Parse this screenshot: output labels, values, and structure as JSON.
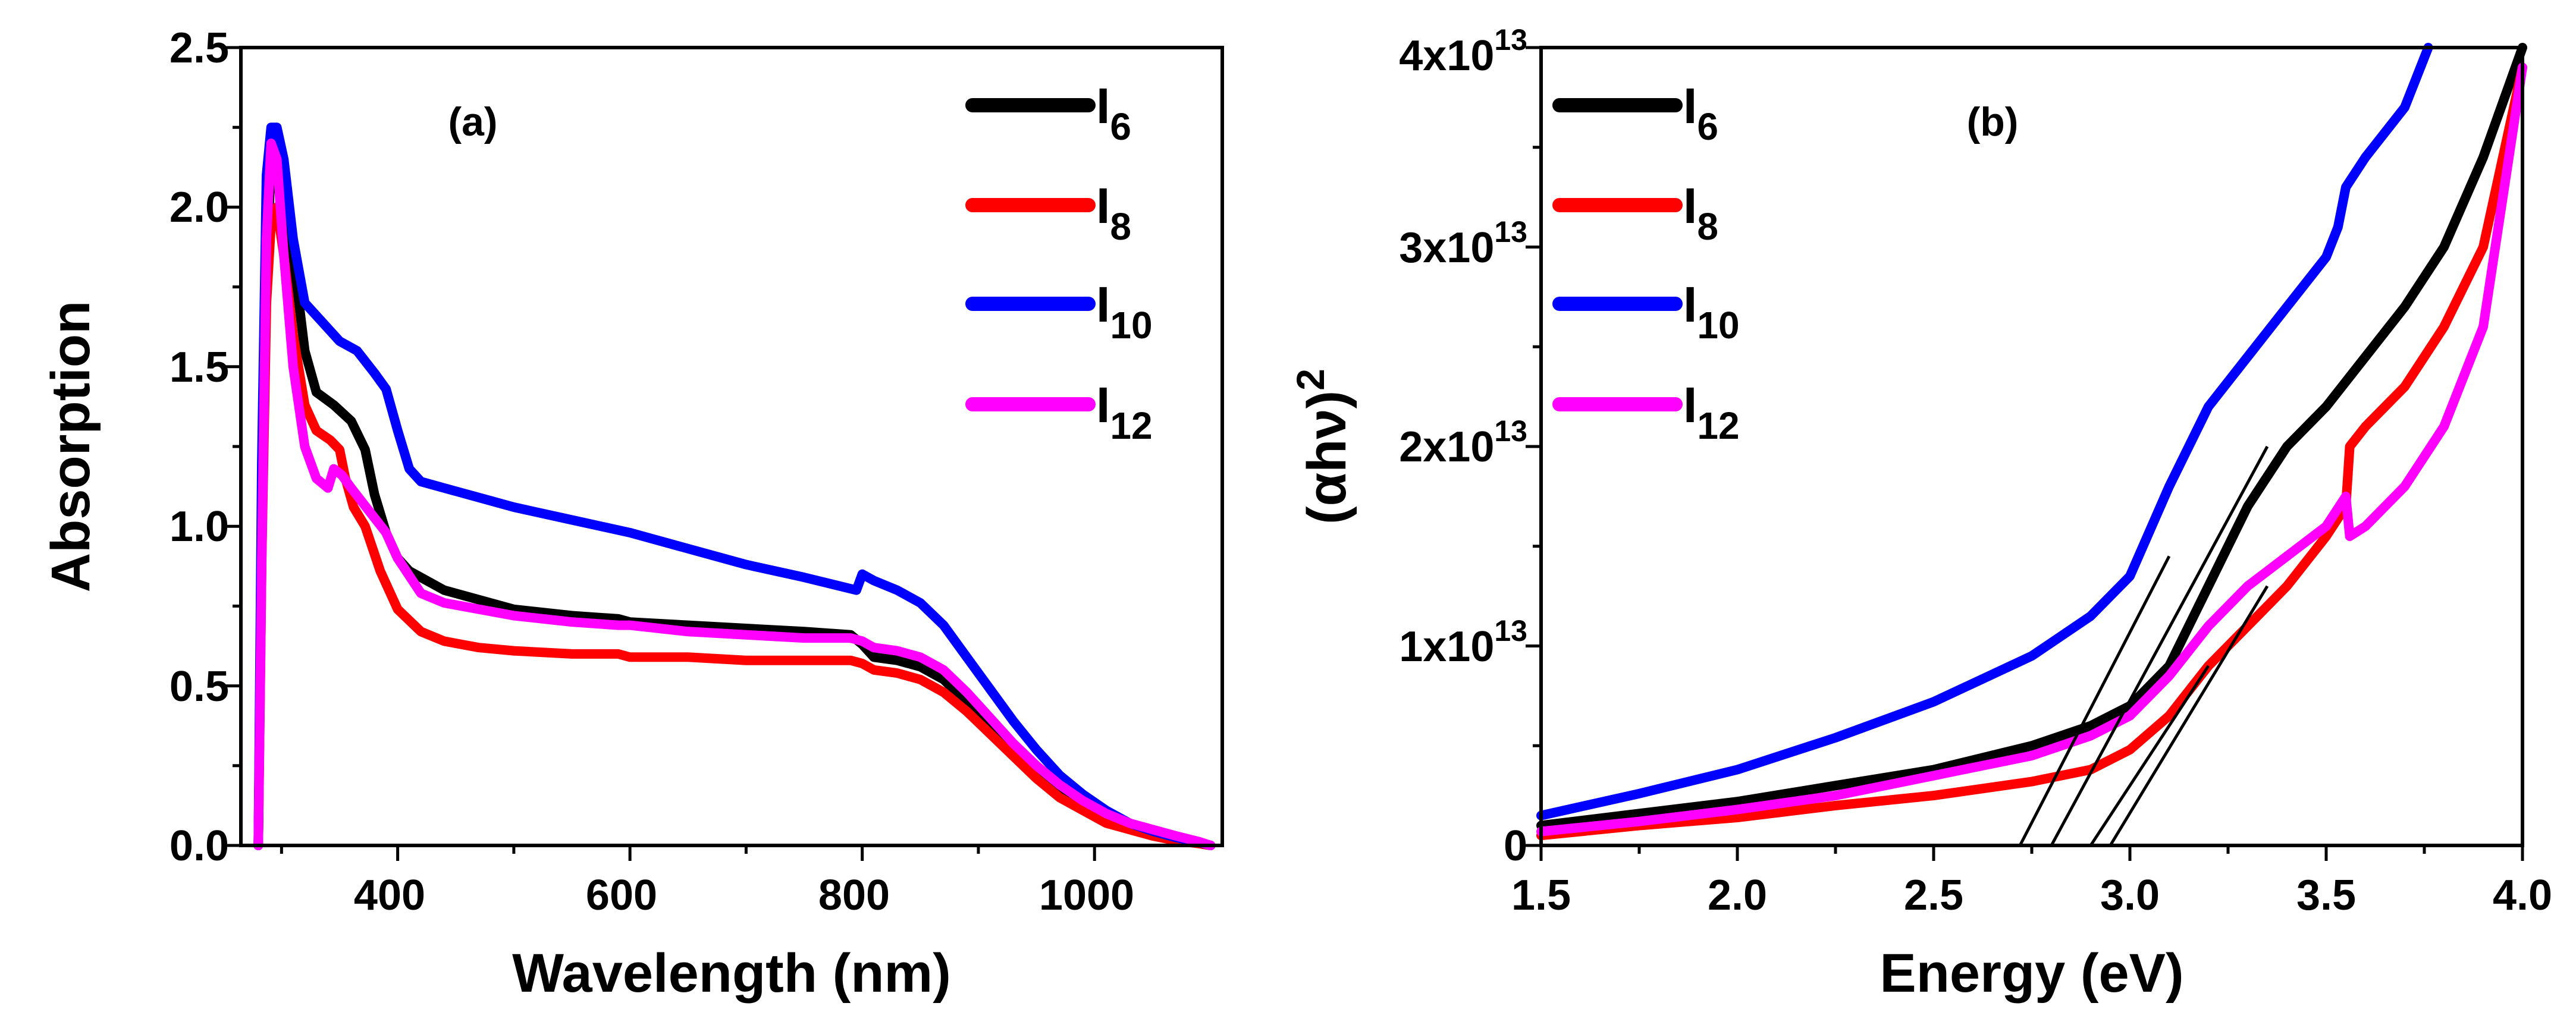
{
  "chart_data": [
    {
      "type": "line",
      "panel_label": "(a)",
      "xlabel": "Wavelength (nm)",
      "ylabel": "Absorption",
      "xlim": [
        265,
        1110
      ],
      "ylim": [
        0,
        2.5
      ],
      "x_ticks": [
        400,
        600,
        800,
        1000
      ],
      "x_tick_labels": [
        "400",
        "600",
        "800",
        "1000"
      ],
      "y_ticks": [
        0,
        0.5,
        1.0,
        1.5,
        2.0,
        2.5
      ],
      "y_tick_labels": [
        "0.0",
        "0.5",
        "1.0",
        "1.5",
        "2.0",
        "2.5"
      ],
      "legend_position": "top-right",
      "series": [
        {
          "name": "I6",
          "legend_main": "I",
          "legend_sub": "6",
          "color": "#000000",
          "x": [
            280,
            283,
            287,
            291,
            296,
            302,
            310,
            320,
            330,
            345,
            360,
            372,
            380,
            390,
            400,
            410,
            420,
            440,
            470,
            500,
            550,
            590,
            600,
            650,
            700,
            750,
            790,
            800,
            810,
            830,
            850,
            870,
            890,
            910,
            930,
            950,
            970,
            990,
            1010,
            1030,
            1050,
            1070,
            1090,
            1100
          ],
          "y": [
            0.0,
            1.0,
            1.8,
            2.15,
            2.2,
            2.1,
            1.85,
            1.55,
            1.42,
            1.38,
            1.33,
            1.24,
            1.1,
            0.98,
            0.9,
            0.86,
            0.84,
            0.8,
            0.77,
            0.74,
            0.72,
            0.71,
            0.7,
            0.69,
            0.68,
            0.67,
            0.66,
            0.63,
            0.59,
            0.58,
            0.56,
            0.52,
            0.45,
            0.38,
            0.31,
            0.24,
            0.18,
            0.13,
            0.09,
            0.06,
            0.04,
            0.02,
            0.008,
            0.0
          ]
        },
        {
          "name": "I8",
          "legend_main": "I",
          "legend_sub": "8",
          "color": "#ff0000",
          "x": [
            280,
            283,
            287,
            291,
            296,
            302,
            310,
            320,
            330,
            342,
            350,
            355,
            362,
            372,
            385,
            400,
            420,
            440,
            470,
            500,
            550,
            590,
            600,
            650,
            700,
            750,
            790,
            800,
            810,
            830,
            850,
            870,
            890,
            910,
            930,
            950,
            970,
            990,
            1010,
            1030,
            1050,
            1070,
            1090,
            1100
          ],
          "y": [
            0.0,
            0.9,
            1.7,
            1.95,
            2.0,
            1.85,
            1.6,
            1.38,
            1.3,
            1.27,
            1.24,
            1.15,
            1.06,
            1.0,
            0.86,
            0.74,
            0.67,
            0.64,
            0.62,
            0.61,
            0.6,
            0.6,
            0.59,
            0.59,
            0.58,
            0.58,
            0.58,
            0.57,
            0.55,
            0.54,
            0.52,
            0.48,
            0.42,
            0.35,
            0.28,
            0.21,
            0.15,
            0.11,
            0.07,
            0.05,
            0.03,
            0.015,
            0.006,
            0.0
          ]
        },
        {
          "name": "I10",
          "legend_main": "I",
          "legend_sub": "10",
          "color": "#0000ff",
          "x": [
            280,
            283,
            287,
            291,
            296,
            302,
            310,
            320,
            335,
            350,
            365,
            380,
            390,
            400,
            410,
            420,
            440,
            470,
            500,
            550,
            600,
            650,
            700,
            750,
            795,
            800,
            810,
            830,
            850,
            870,
            890,
            910,
            930,
            950,
            970,
            990,
            1010,
            1030,
            1050,
            1070,
            1090,
            1100
          ],
          "y": [
            0.0,
            1.2,
            2.1,
            2.25,
            2.25,
            2.15,
            1.9,
            1.7,
            1.64,
            1.58,
            1.55,
            1.48,
            1.43,
            1.3,
            1.18,
            1.14,
            1.12,
            1.09,
            1.06,
            1.02,
            0.98,
            0.93,
            0.88,
            0.84,
            0.8,
            0.85,
            0.83,
            0.8,
            0.76,
            0.69,
            0.59,
            0.49,
            0.39,
            0.3,
            0.22,
            0.16,
            0.11,
            0.07,
            0.045,
            0.025,
            0.01,
            0.0
          ]
        },
        {
          "name": "I12",
          "legend_main": "I",
          "legend_sub": "12",
          "color": "#ff00ff",
          "x": [
            280,
            283,
            287,
            291,
            296,
            302,
            310,
            320,
            330,
            340,
            345,
            352,
            360,
            375,
            390,
            400,
            420,
            440,
            470,
            500,
            550,
            590,
            600,
            650,
            700,
            750,
            790,
            800,
            810,
            830,
            850,
            870,
            890,
            910,
            930,
            950,
            970,
            990,
            1010,
            1030,
            1050,
            1070,
            1090,
            1100
          ],
          "y": [
            0.0,
            0.9,
            1.9,
            2.2,
            2.15,
            1.85,
            1.5,
            1.25,
            1.15,
            1.12,
            1.18,
            1.16,
            1.12,
            1.05,
            0.98,
            0.9,
            0.79,
            0.76,
            0.74,
            0.72,
            0.7,
            0.69,
            0.69,
            0.67,
            0.66,
            0.65,
            0.65,
            0.64,
            0.62,
            0.61,
            0.59,
            0.55,
            0.48,
            0.4,
            0.32,
            0.25,
            0.19,
            0.14,
            0.1,
            0.07,
            0.05,
            0.03,
            0.012,
            0.0
          ]
        }
      ]
    },
    {
      "type": "line",
      "panel_label": "(b)",
      "xlabel": "Energy (eV)",
      "ylabel_main": "(αhν)",
      "ylabel_sup": "2",
      "xlim": [
        1.5,
        4.0
      ],
      "ylim": [
        0,
        40000000000000
      ],
      "x_ticks": [
        1.5,
        2.0,
        2.5,
        3.0,
        3.5,
        4.0
      ],
      "x_tick_labels": [
        "1.5",
        "2.0",
        "2.5",
        "3.0",
        "3.5",
        "4.0"
      ],
      "y_ticks": [
        0,
        10000000000000,
        20000000000000,
        30000000000000,
        40000000000000
      ],
      "y_tick_labels": [
        {
          "main": "0",
          "exp": ""
        },
        {
          "main": "1x10",
          "exp": "13"
        },
        {
          "main": "2x10",
          "exp": "13"
        },
        {
          "main": "3x10",
          "exp": "13"
        },
        {
          "main": "4x10",
          "exp": "13"
        }
      ],
      "legend_position": "top-left",
      "series": [
        {
          "name": "I6",
          "legend_main": "I",
          "legend_sub": "6",
          "color": "#000000",
          "x": [
            1.5,
            1.75,
            2.0,
            2.25,
            2.5,
            2.75,
            2.9,
            3.0,
            3.1,
            3.2,
            3.3,
            3.4,
            3.5,
            3.6,
            3.7,
            3.8,
            3.9,
            4.0
          ],
          "y": [
            1000000000000.0,
            1600000000000.0,
            2200000000000.0,
            3000000000000.0,
            3800000000000.0,
            5000000000000.0,
            6000000000000.0,
            7000000000000.0,
            9000000000000.0,
            13000000000000.0,
            17000000000000.0,
            20000000000000.0,
            22000000000000.0,
            24500000000000.0,
            27000000000000.0,
            30000000000000.0,
            34500000000000.0,
            40000000000000.0
          ]
        },
        {
          "name": "I8",
          "legend_main": "I",
          "legend_sub": "8",
          "color": "#ff0000",
          "x": [
            1.5,
            1.75,
            2.0,
            2.25,
            2.5,
            2.75,
            2.9,
            3.0,
            3.1,
            3.2,
            3.3,
            3.4,
            3.5,
            3.55,
            3.56,
            3.6,
            3.7,
            3.8,
            3.9,
            4.0
          ],
          "y": [
            500000000000.0,
            1000000000000.0,
            1400000000000.0,
            2000000000000.0,
            2500000000000.0,
            3200000000000.0,
            3800000000000.0,
            4800000000000.0,
            6500000000000.0,
            9000000000000.0,
            11000000000000.0,
            13000000000000.0,
            15500000000000.0,
            17000000000000.0,
            20000000000000.0,
            21000000000000.0,
            23000000000000.0,
            26000000000000.0,
            30000000000000.0,
            39000000000000.0
          ]
        },
        {
          "name": "I10",
          "legend_main": "I",
          "legend_sub": "10",
          "color": "#0000ff",
          "x": [
            1.5,
            1.75,
            2.0,
            2.25,
            2.5,
            2.75,
            2.9,
            3.0,
            3.1,
            3.2,
            3.3,
            3.4,
            3.5,
            3.53,
            3.55,
            3.6,
            3.7,
            3.76
          ],
          "y": [
            1500000000000.0,
            2600000000000.0,
            3800000000000.0,
            5400000000000.0,
            7200000000000.0,
            9500000000000.0,
            11500000000000.0,
            13500000000000.0,
            18000000000000.0,
            22000000000000.0,
            24500000000000.0,
            27000000000000.0,
            29500000000000.0,
            31000000000000.0,
            33000000000000.0,
            34500000000000.0,
            37000000000000.0,
            40000000000000.0
          ]
        },
        {
          "name": "I12",
          "legend_main": "I",
          "legend_sub": "12",
          "color": "#ff00ff",
          "x": [
            1.5,
            1.75,
            2.0,
            2.25,
            2.5,
            2.75,
            2.9,
            3.0,
            3.1,
            3.2,
            3.3,
            3.4,
            3.5,
            3.55,
            3.56,
            3.6,
            3.7,
            3.8,
            3.9,
            4.0
          ],
          "y": [
            700000000000.0,
            1200000000000.0,
            1800000000000.0,
            2500000000000.0,
            3500000000000.0,
            4500000000000.0,
            5500000000000.0,
            6500000000000.0,
            8500000000000.0,
            11000000000000.0,
            13000000000000.0,
            14500000000000.0,
            16000000000000.0,
            17500000000000.0,
            15500000000000.0,
            16000000000000.0,
            18000000000000.0,
            21000000000000.0,
            26000000000000.0,
            39000000000000.0
          ]
        }
      ],
      "fit_lines": [
        {
          "name": "I6-tangent",
          "x": [
            2.8,
            3.35
          ],
          "y": [
            0,
            20000000000000.0
          ]
        },
        {
          "name": "I8-tangent",
          "x": [
            2.95,
            3.35
          ],
          "y": [
            0,
            13000000000000.0
          ]
        },
        {
          "name": "I10-tangent",
          "x": [
            2.72,
            3.1
          ],
          "y": [
            0,
            14500000000000.0
          ]
        },
        {
          "name": "I12-tangent",
          "x": [
            2.9,
            3.2
          ],
          "y": [
            0,
            9000000000000.0
          ]
        }
      ]
    }
  ]
}
